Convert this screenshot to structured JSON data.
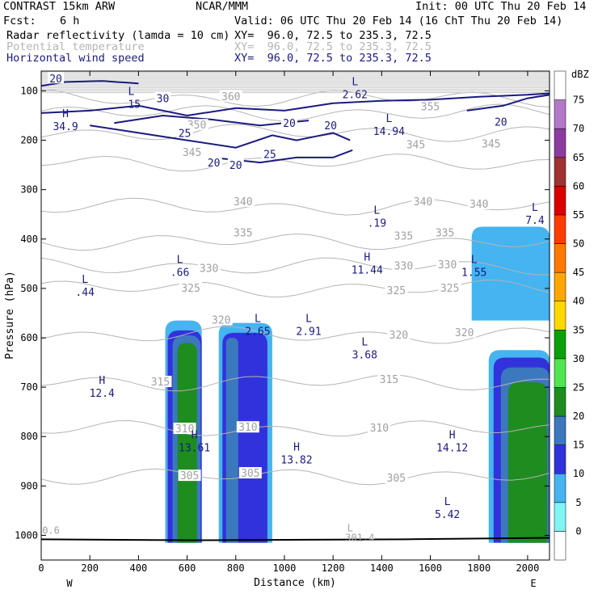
{
  "header": {
    "title": "CONTRAST 15km ARW",
    "org": "NCAR/MMM",
    "init": "Init: 00 UTC Thu 20 Feb 14",
    "fcst_label": "Fcst:",
    "fcst_value": "6 h",
    "valid": "Valid: 06 UTC Thu 20 Feb 14 (16 ChT Thu 20 Feb 14)",
    "fields": [
      {
        "name": "Radar reflectivity (lamda = 10 cm)",
        "xy": "XY=  96.0, 72.5 to 235.3, 72.5",
        "color": "#000000"
      },
      {
        "name": "Potential temperature",
        "xy": "XY=  96.0, 72.5 to 235.3, 72.5",
        "color": "#b4b4b4"
      },
      {
        "name": "Horizontal wind speed",
        "xy": "XY=  96.0, 72.5 to 235.3, 72.5",
        "color": "#1a1a80"
      }
    ]
  },
  "chart_data": {
    "type": "heatmap",
    "xlabel": "Distance (km)",
    "ylabel": "Pressure (hPa)",
    "xlim": [
      0,
      2090
    ],
    "ylim": [
      1050,
      60
    ],
    "xticks": [
      0,
      200,
      400,
      600,
      800,
      1000,
      1200,
      1400,
      1600,
      1800,
      2000
    ],
    "yticks": [
      100,
      200,
      300,
      400,
      500,
      600,
      700,
      800,
      900,
      1000
    ],
    "end_labels": {
      "left": "W",
      "right": "E"
    },
    "colorbar": {
      "unit": "dBZ",
      "levels": [
        0,
        5,
        10,
        15,
        20,
        25,
        30,
        35,
        40,
        45,
        50,
        55,
        60,
        65,
        70,
        75
      ],
      "colors": [
        "#ffffff",
        "#7ff5f5",
        "#45b4f0",
        "#3232dc",
        "#3c78be",
        "#1e8c1e",
        "#50e650",
        "#0ba00b",
        "#ffd700",
        "#ffa500",
        "#ff7800",
        "#ff3c00",
        "#dc0000",
        "#a03232",
        "#8c3ca0",
        "#b478c8",
        "#ffffff"
      ]
    },
    "reflectivity_cells": [
      {
        "x": [
          510,
          660
        ],
        "p_top": 565,
        "level": 5
      },
      {
        "x": [
          730,
          950
        ],
        "p_top": 570,
        "level": 5
      },
      {
        "x": [
          1840,
          2090
        ],
        "p_top": 625,
        "level": 5
      },
      {
        "x": [
          1770,
          2090
        ],
        "p_top": 375,
        "p_bottom": 565,
        "level": 5
      },
      {
        "x": [
          520,
          660
        ],
        "p_top": 585,
        "level": 10
      },
      {
        "x": [
          745,
          930
        ],
        "p_top": 590,
        "level": 10
      },
      {
        "x": [
          1860,
          2090
        ],
        "p_top": 640,
        "level": 10
      },
      {
        "x": [
          540,
          655
        ],
        "p_top": 595,
        "level": 15
      },
      {
        "x": [
          760,
          810
        ],
        "p_top": 600,
        "level": 15
      },
      {
        "x": [
          1890,
          2090
        ],
        "p_top": 660,
        "level": 15
      },
      {
        "x": [
          560,
          640
        ],
        "p_top": 610,
        "level": 20
      },
      {
        "x": [
          1920,
          2080
        ],
        "p_top": 690,
        "level": 20
      }
    ],
    "theta_contours": [
      {
        "level": 305,
        "p": 880
      },
      {
        "level": 310,
        "p": 785
      },
      {
        "level": 315,
        "p": 690
      },
      {
        "level": 320,
        "p": 595
      },
      {
        "level": 325,
        "p": 500
      },
      {
        "level": 330,
        "p": 455
      },
      {
        "level": 335,
        "p": 405
      },
      {
        "level": 340,
        "p": 335
      },
      {
        "level": 345,
        "p": 245
      },
      {
        "level": 350,
        "p": 185
      },
      {
        "level": 355,
        "p": 145
      },
      {
        "level": 360,
        "p": 115
      }
    ],
    "theta_labels": [
      {
        "text": "305",
        "x": 610,
        "p": 880
      },
      {
        "text": "305",
        "x": 860,
        "p": 875
      },
      {
        "text": "305",
        "x": 1460,
        "p": 885
      },
      {
        "text": "310",
        "x": 590,
        "p": 785
      },
      {
        "text": "310",
        "x": 850,
        "p": 782
      },
      {
        "text": "310",
        "x": 1390,
        "p": 783
      },
      {
        "text": "315",
        "x": 490,
        "p": 690
      },
      {
        "text": "315",
        "x": 1430,
        "p": 685
      },
      {
        "text": "320",
        "x": 740,
        "p": 565
      },
      {
        "text": "320",
        "x": 1470,
        "p": 595
      },
      {
        "text": "320",
        "x": 1740,
        "p": 590
      },
      {
        "text": "325",
        "x": 615,
        "p": 500
      },
      {
        "text": "325",
        "x": 1460,
        "p": 505
      },
      {
        "text": "325",
        "x": 1680,
        "p": 500
      },
      {
        "text": "330",
        "x": 690,
        "p": 460
      },
      {
        "text": "330",
        "x": 1490,
        "p": 455
      },
      {
        "text": "330",
        "x": 1670,
        "p": 453
      },
      {
        "text": "335",
        "x": 830,
        "p": 388
      },
      {
        "text": "335",
        "x": 1490,
        "p": 395
      },
      {
        "text": "335",
        "x": 1660,
        "p": 388
      },
      {
        "text": "340",
        "x": 830,
        "p": 325
      },
      {
        "text": "340",
        "x": 1570,
        "p": 325
      },
      {
        "text": "340",
        "x": 1800,
        "p": 330
      },
      {
        "text": "345",
        "x": 620,
        "p": 225
      },
      {
        "text": "345",
        "x": 1540,
        "p": 210
      },
      {
        "text": "345",
        "x": 1850,
        "p": 208
      },
      {
        "text": "350",
        "x": 640,
        "p": 170
      },
      {
        "text": "355",
        "x": 1600,
        "p": 133
      },
      {
        "text": "360",
        "x": 780,
        "p": 112
      }
    ],
    "wind_labels": [
      {
        "text": "20",
        "x": 60,
        "p": 75
      },
      {
        "text": "30",
        "x": 500,
        "p": 115
      },
      {
        "text": "20",
        "x": 1020,
        "p": 165
      },
      {
        "text": "20",
        "x": 1190,
        "p": 170
      },
      {
        "text": "25",
        "x": 590,
        "p": 185
      },
      {
        "text": "20",
        "x": 710,
        "p": 245
      },
      {
        "text": "20",
        "x": 800,
        "p": 250
      },
      {
        "text": "25",
        "x": 940,
        "p": 228
      },
      {
        "text": "20",
        "x": 1890,
        "p": 162
      }
    ],
    "extrema": [
      {
        "kind": "L",
        "value": ".15",
        "x": 370,
        "p": 115
      },
      {
        "kind": "H",
        "value": "34.9",
        "x": 100,
        "p": 160
      },
      {
        "kind": "L",
        "value": "2.62",
        "x": 1290,
        "p": 95
      },
      {
        "kind": "L",
        "value": "14.94",
        "x": 1430,
        "p": 170
      },
      {
        "kind": "L",
        "value": ".19",
        "x": 1380,
        "p": 355
      },
      {
        "kind": "L",
        "value": "7.4",
        "x": 2030,
        "p": 350
      },
      {
        "kind": "L",
        "value": ".44",
        "x": 180,
        "p": 495
      },
      {
        "kind": "L",
        "value": ".66",
        "x": 570,
        "p": 455
      },
      {
        "kind": "H",
        "value": "11.44",
        "x": 1340,
        "p": 450
      },
      {
        "kind": "L",
        "value": "1.55",
        "x": 1780,
        "p": 455
      },
      {
        "kind": "L",
        "value": "2.65",
        "x": 890,
        "p": 575
      },
      {
        "kind": "L",
        "value": "2.91",
        "x": 1100,
        "p": 575
      },
      {
        "kind": "L",
        "value": "3.68",
        "x": 1330,
        "p": 622
      },
      {
        "kind": "H",
        "value": "12.4",
        "x": 250,
        "p": 700
      },
      {
        "kind": "H",
        "value": "13.61",
        "x": 630,
        "p": 810
      },
      {
        "kind": "H",
        "value": "13.82",
        "x": 1050,
        "p": 835
      },
      {
        "kind": "H",
        "value": "14.12",
        "x": 1690,
        "p": 810
      },
      {
        "kind": "L",
        "value": "5.42",
        "x": 1670,
        "p": 945
      }
    ],
    "edge_labels": [
      {
        "text": "0.6",
        "x": 40,
        "p": 990
      },
      {
        "text": "301.4",
        "x": 1310,
        "p": 1005
      },
      {
        "text": "L",
        "x": 1270,
        "p": 985
      }
    ]
  }
}
